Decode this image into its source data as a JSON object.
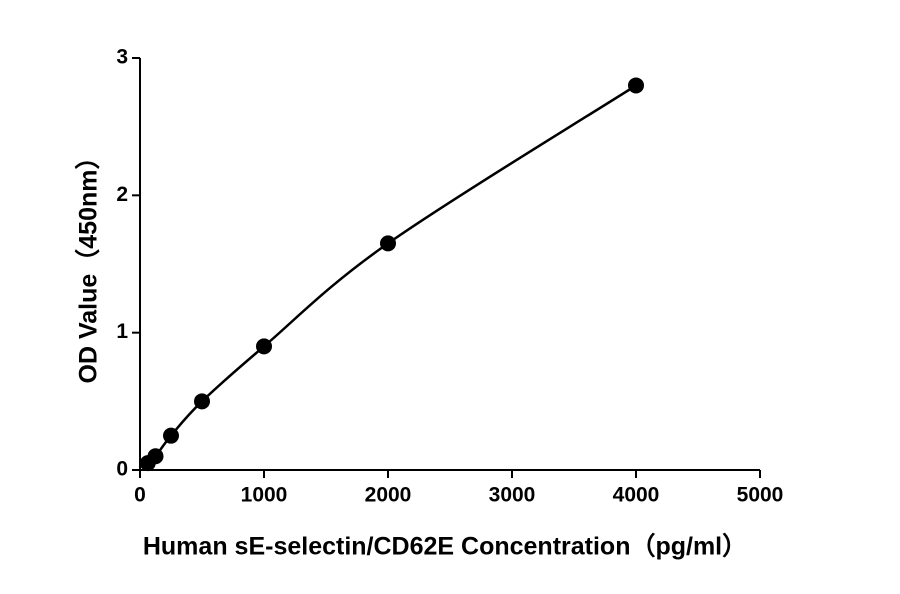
{
  "chart_data": {
    "type": "line",
    "x_label": "Human sE-selectin/CD62E Concentration（pg/ml）",
    "y_label": "OD Value（450nm）",
    "series": [
      {
        "color": "#000000",
        "x": [
          62.5,
          125,
          250,
          500,
          1000,
          2000,
          4000
        ],
        "values": [
          0.05,
          0.1,
          0.25,
          0.5,
          0.9,
          1.65,
          2.8
        ]
      }
    ],
    "xlim": [
      0,
      5000
    ],
    "xticks": [
      0,
      1000,
      2000,
      3000,
      4000,
      5000
    ],
    "ylim": [
      0,
      3
    ],
    "yticks": [
      0,
      1,
      2,
      3
    ]
  }
}
